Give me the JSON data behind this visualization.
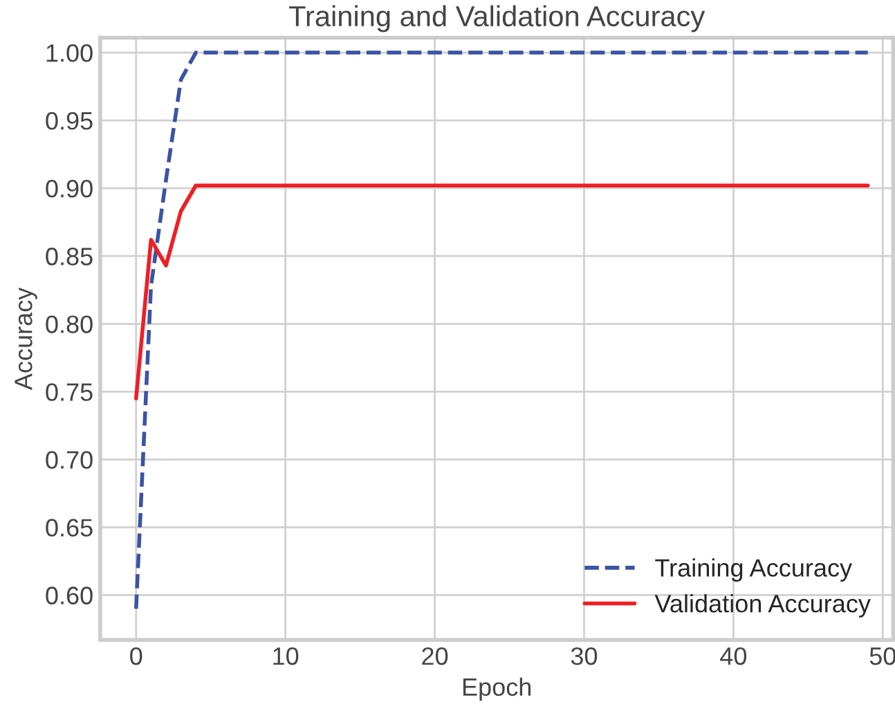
{
  "chart_data": {
    "type": "line",
    "title": "Training and Validation Accuracy",
    "xlabel": "Epoch",
    "ylabel": "Accuracy",
    "x": [
      0,
      1,
      2,
      3,
      4,
      5,
      6,
      7,
      8,
      9,
      10,
      11,
      12,
      13,
      14,
      15,
      16,
      17,
      18,
      19,
      20,
      21,
      22,
      23,
      24,
      25,
      26,
      27,
      28,
      29,
      30,
      31,
      32,
      33,
      34,
      35,
      36,
      37,
      38,
      39,
      40,
      41,
      42,
      43,
      44,
      45,
      46,
      47,
      48,
      49
    ],
    "series": [
      {
        "name": "Training Accuracy",
        "color": "#3a53a4",
        "line_style": "dashed",
        "values": [
          0.59,
          0.828,
          0.906,
          0.98,
          1.0,
          1.0,
          1.0,
          1.0,
          1.0,
          1.0,
          1.0,
          1.0,
          1.0,
          1.0,
          1.0,
          1.0,
          1.0,
          1.0,
          1.0,
          1.0,
          1.0,
          1.0,
          1.0,
          1.0,
          1.0,
          1.0,
          1.0,
          1.0,
          1.0,
          1.0,
          1.0,
          1.0,
          1.0,
          1.0,
          1.0,
          1.0,
          1.0,
          1.0,
          1.0,
          1.0,
          1.0,
          1.0,
          1.0,
          1.0,
          1.0,
          1.0,
          1.0,
          1.0,
          1.0,
          1.0
        ]
      },
      {
        "name": "Validation Accuracy",
        "color": "#ee1f25",
        "line_style": "solid",
        "values": [
          0.745,
          0.862,
          0.843,
          0.883,
          0.902,
          0.902,
          0.902,
          0.902,
          0.902,
          0.902,
          0.902,
          0.902,
          0.902,
          0.902,
          0.902,
          0.902,
          0.902,
          0.902,
          0.902,
          0.902,
          0.902,
          0.902,
          0.902,
          0.902,
          0.902,
          0.902,
          0.902,
          0.902,
          0.902,
          0.902,
          0.902,
          0.902,
          0.902,
          0.902,
          0.902,
          0.902,
          0.902,
          0.902,
          0.902,
          0.902,
          0.902,
          0.902,
          0.902,
          0.902,
          0.902,
          0.902,
          0.902,
          0.902,
          0.902,
          0.902
        ]
      }
    ],
    "xlim": [
      -2.4,
      50.7
    ],
    "xticks": [
      0,
      10,
      20,
      30,
      40,
      50
    ],
    "ylim": [
      0.567,
      1.011
    ],
    "yticks": [
      {
        "value": 0.6,
        "label": "0.60"
      },
      {
        "value": 0.65,
        "label": "0.65"
      },
      {
        "value": 0.7,
        "label": "0.70"
      },
      {
        "value": 0.75,
        "label": "0.75"
      },
      {
        "value": 0.8,
        "label": "0.80"
      },
      {
        "value": 0.85,
        "label": "0.85"
      },
      {
        "value": 0.9,
        "label": "0.90"
      },
      {
        "value": 0.95,
        "label": "0.95"
      },
      {
        "value": 1.0,
        "label": "1.00"
      }
    ],
    "grid": true,
    "legend": "bottom right"
  }
}
